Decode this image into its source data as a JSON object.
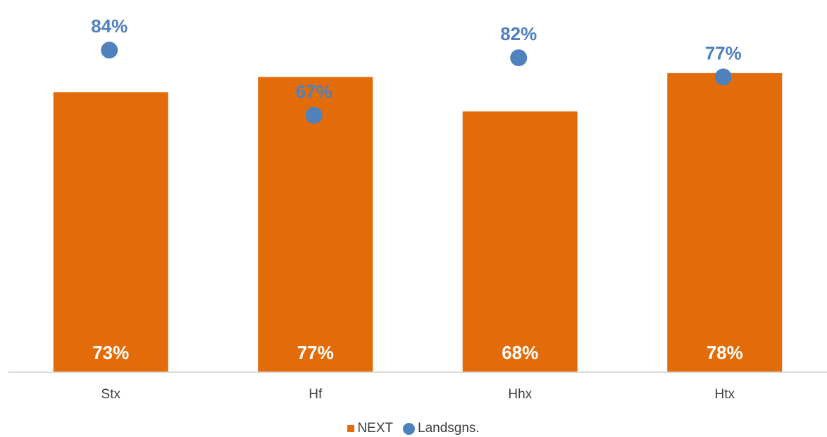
{
  "chart_data": {
    "type": "bar",
    "categories": [
      "Stx",
      "Hf",
      "Hhx",
      "Htx"
    ],
    "ylim": [
      0,
      100
    ],
    "series": [
      {
        "name": "NEXT",
        "kind": "bar",
        "values": [
          73,
          77,
          68,
          78
        ],
        "labels": [
          "73%",
          "77%",
          "68%",
          "78%"
        ],
        "color": "#E36C0A"
      },
      {
        "name": "Landsgns.",
        "kind": "marker",
        "values": [
          84,
          67,
          82,
          77
        ],
        "labels": [
          "84%",
          "67%",
          "82%",
          "77%"
        ],
        "color": "#4F81BD"
      }
    ],
    "axis_color": "#D9D9D9",
    "tick_label_color": "#404040",
    "bar_label_color": "#ffffff",
    "marker_label_color": "#4F81BD",
    "grid": false,
    "legend_position": "bottom"
  }
}
